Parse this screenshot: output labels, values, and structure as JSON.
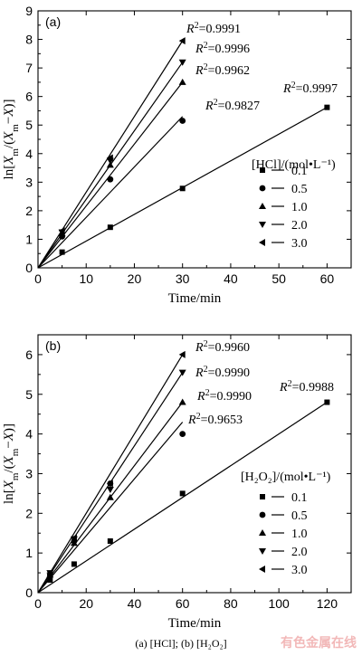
{
  "caption": "(a) [HCl]; (b) [H₂O₂]",
  "watermark": "有色金属在线",
  "chart_data": [
    {
      "type": "scatter",
      "panel": "(a)",
      "xlabel": "Time/min",
      "ylabel": "ln[Xm/(Xm−X)]",
      "xlim": [
        0,
        65
      ],
      "ylim": [
        0,
        9
      ],
      "xticks": [
        0,
        10,
        20,
        30,
        40,
        50,
        60
      ],
      "yticks": [
        0,
        1,
        2,
        3,
        4,
        5,
        6,
        7,
        8,
        9
      ],
      "legend_title": "[HCl]/(mol•L⁻¹)",
      "legend_position": "right",
      "series": [
        {
          "name": "0.1",
          "marker": "square",
          "x": [
            5,
            15,
            30,
            60
          ],
          "y": [
            0.55,
            1.42,
            2.78,
            5.62
          ],
          "fit_end": [
            60,
            5.62
          ],
          "r2": "=0.9997"
        },
        {
          "name": "0.5",
          "marker": "circle",
          "x": [
            5,
            15,
            30
          ],
          "y": [
            1.1,
            3.1,
            5.15
          ],
          "fit_end": [
            30,
            5.3
          ],
          "r2": "=0.9827"
        },
        {
          "name": "1.0",
          "marker": "triangle-up",
          "x": [
            5,
            15,
            30
          ],
          "y": [
            1.2,
            3.6,
            6.5
          ],
          "fit_end": [
            30,
            6.5
          ],
          "r2": "=0.9962"
        },
        {
          "name": "2.0",
          "marker": "triangle-down",
          "x": [
            5,
            15,
            30
          ],
          "y": [
            1.25,
            3.75,
            7.2
          ],
          "fit_end": [
            30,
            7.2
          ],
          "r2": "=0.9996"
        },
        {
          "name": "3.0",
          "marker": "triangle-left",
          "x": [
            5,
            15,
            30
          ],
          "y": [
            1.3,
            3.85,
            7.95
          ],
          "fit_end": [
            30,
            7.95
          ],
          "r2": "=0.9991"
        }
      ]
    },
    {
      "type": "scatter",
      "panel": "(b)",
      "xlabel": "Time/min",
      "ylabel": "ln[Xm/(Xm−X)]",
      "xlim": [
        0,
        130
      ],
      "ylim": [
        0,
        6.5
      ],
      "xticks": [
        0,
        20,
        40,
        60,
        80,
        100,
        120
      ],
      "yticks": [
        0,
        1,
        2,
        3,
        4,
        5,
        6
      ],
      "legend_title": "[H₂O₂]/(mol•L⁻¹)",
      "legend_position": "right",
      "series": [
        {
          "name": "0.1",
          "marker": "square",
          "x": [
            5,
            15,
            30,
            60,
            120
          ],
          "y": [
            0.32,
            0.72,
            1.3,
            2.5,
            4.8
          ],
          "fit_end": [
            120,
            4.8
          ],
          "r2": "=0.9988"
        },
        {
          "name": "0.5",
          "marker": "circle",
          "x": [
            5,
            15,
            30,
            60
          ],
          "y": [
            0.45,
            1.3,
            2.75,
            4.0
          ],
          "fit_end": [
            60,
            4.3
          ],
          "r2": "=0.9653"
        },
        {
          "name": "1.0",
          "marker": "triangle-up",
          "x": [
            5,
            15,
            30,
            60
          ],
          "y": [
            0.45,
            1.25,
            2.4,
            4.8
          ],
          "fit_end": [
            60,
            4.8
          ],
          "r2": "=0.9990"
        },
        {
          "name": "2.0",
          "marker": "triangle-down",
          "x": [
            5,
            15,
            30,
            60
          ],
          "y": [
            0.5,
            1.35,
            2.6,
            5.55
          ],
          "fit_end": [
            60,
            5.55
          ],
          "r2": "=0.9990"
        },
        {
          "name": "3.0",
          "marker": "triangle-left",
          "x": [
            5,
            15,
            30,
            60
          ],
          "y": [
            0.5,
            1.38,
            2.75,
            6.0
          ],
          "fit_end": [
            60,
            6.0
          ],
          "r2": "=0.9960"
        }
      ]
    }
  ]
}
